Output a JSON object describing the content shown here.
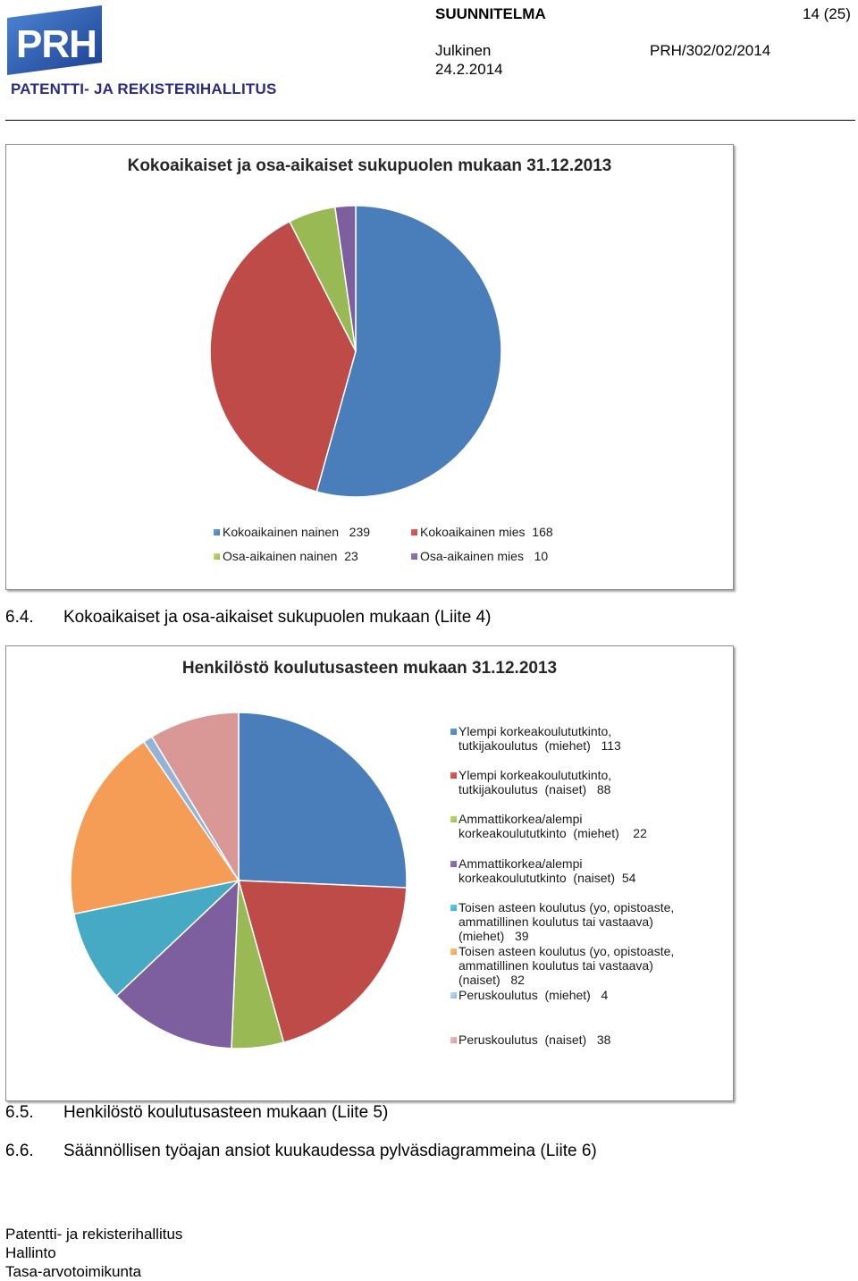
{
  "header": {
    "logo_text": "PATENTTI- JA REKISTERIHALLITUS",
    "logo_mark": "PRH",
    "doc_type": "SUUNNITELMA",
    "page": "14 (25)",
    "classification": "Julkinen",
    "doc_id": "PRH/302/02/2014",
    "date": "24.2.2014"
  },
  "chart_data": [
    {
      "type": "pie",
      "title": "Kokoaikaiset ja osa-aikaiset sukupuolen mukaan 31.12.2013",
      "categories": [
        "Kokoaikainen nainen",
        "Kokoaikainen mies",
        "Osa-aikainen nainen",
        "Osa-aikainen mies"
      ],
      "values": [
        239,
        168,
        23,
        10
      ],
      "colors": [
        "#4a7ebb",
        "#be4b48",
        "#98b954",
        "#7d5fa0"
      ],
      "legend": [
        {
          "label": "Kokoaikainen nainen   239"
        },
        {
          "label": "Kokoaikainen mies  168"
        },
        {
          "label": "Osa-aikainen nainen  23"
        },
        {
          "label": "Osa-aikainen mies   10"
        }
      ],
      "legend_position": "bottom"
    },
    {
      "type": "pie",
      "title": "Henkilöstö koulutusasteen mukaan 31.12.2013",
      "categories": [
        "Ylempi korkeakoulututkinto, tutkijakoulutus (miehet)",
        "Ylempi korkeakoulututkinto, tutkijakoulutus (naiset)",
        "Ammattikorkea/alempi korkeakoulututkinto (miehet)",
        "Ammattikorkea/alempi korkeakoulututkinto (naiset)",
        "Toisen asteen koulutus (yo, opistoaste, ammatillinen koulutus tai vastaava) (miehet)",
        "Toisen asteen koulutus (yo, opistoaste, ammatillinen koulutus tai vastaava) (naiset)",
        "Peruskoulutus (miehet)",
        "Peruskoulutus (naiset)"
      ],
      "values": [
        113,
        88,
        22,
        54,
        39,
        82,
        4,
        38
      ],
      "colors": [
        "#4a7ebb",
        "#be4b48",
        "#98b954",
        "#7d5fa0",
        "#46aac5",
        "#f59d56",
        "#94b3d7",
        "#d99795"
      ],
      "legend": [
        {
          "lines": [
            "Ylempi korkeakoulututkinto,",
            "tutkijakoulutus  (miehet)   113"
          ]
        },
        {
          "lines": [
            "Ylempi korkeakoulututkinto,",
            "tutkijakoulutus  (naiset)   88"
          ]
        },
        {
          "lines": [
            "Ammattikorkea/alempi",
            "korkeakoulututkinto  (miehet)    22"
          ]
        },
        {
          "lines": [
            "Ammattikorkea/alempi",
            "korkeakoulututkinto  (naiset)  54"
          ]
        },
        {
          "lines": [
            "Toisen asteen koulutus (yo, opistoaste,",
            "ammatillinen koulutus tai vastaava)",
            "(miehet)   39"
          ]
        },
        {
          "lines": [
            "Toisen asteen koulutus (yo, opistoaste,",
            "ammatillinen koulutus tai vastaava)",
            "(naiset)   82"
          ]
        },
        {
          "lines": [
            "Peruskoulutus  (miehet)   4"
          ]
        },
        {
          "lines": [
            "Peruskoulutus  (naiset)   38"
          ]
        }
      ],
      "legend_position": "right"
    }
  ],
  "captions": {
    "c1_num": "6.4.",
    "c1_text": "Kokoaikaiset ja osa-aikaiset sukupuolen mukaan (Liite 4)",
    "c2_num": "6.5.",
    "c2_text": "Henkilöstö koulutusasteen mukaan (Liite 5)",
    "c3_num": "6.6.",
    "c3_text": "Säännöllisen työajan ansiot kuukaudessa pylväsdiagrammeina (Liite 6)"
  },
  "footer": {
    "line1": "Patentti- ja rekisterihallitus",
    "line2": "Hallinto",
    "line3": "Tasa-arvotoimikunta"
  }
}
